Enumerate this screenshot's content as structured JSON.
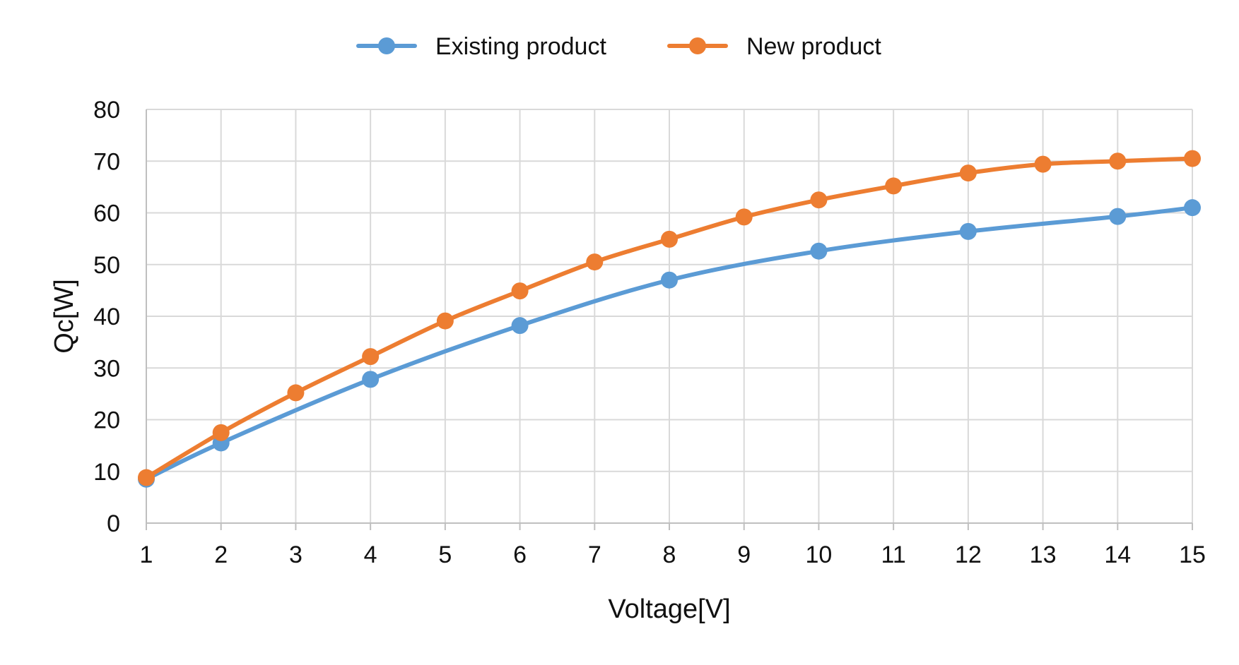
{
  "chart_data": {
    "type": "line",
    "title": "",
    "xlabel": "Voltage[V]",
    "ylabel": "Qc[W]",
    "x": [
      1,
      2,
      3,
      4,
      5,
      6,
      7,
      8,
      9,
      10,
      11,
      12,
      13,
      14,
      15
    ],
    "ylim": [
      0,
      80
    ],
    "yticks": [
      0,
      10,
      20,
      30,
      40,
      50,
      60,
      70,
      80
    ],
    "grid": true,
    "legend_position": "top-center",
    "series": [
      {
        "name": "Existing product",
        "color": "#5B9BD5",
        "smooth": true,
        "points": [
          {
            "x": 1,
            "y": 8.5
          },
          {
            "x": 2,
            "y": 15.5
          },
          {
            "x": 4,
            "y": 27.8
          },
          {
            "x": 6,
            "y": 38.2
          },
          {
            "x": 8,
            "y": 47.0
          },
          {
            "x": 10,
            "y": 52.6
          },
          {
            "x": 12,
            "y": 56.4
          },
          {
            "x": 14,
            "y": 59.3
          },
          {
            "x": 15,
            "y": 61.0
          }
        ]
      },
      {
        "name": "New product",
        "color": "#ED7D31",
        "smooth": true,
        "points": [
          {
            "x": 1,
            "y": 8.8
          },
          {
            "x": 2,
            "y": 17.5
          },
          {
            "x": 3,
            "y": 25.2
          },
          {
            "x": 4,
            "y": 32.2
          },
          {
            "x": 5,
            "y": 39.1
          },
          {
            "x": 6,
            "y": 44.9
          },
          {
            "x": 7,
            "y": 50.5
          },
          {
            "x": 8,
            "y": 54.9
          },
          {
            "x": 9,
            "y": 59.2
          },
          {
            "x": 10,
            "y": 62.5
          },
          {
            "x": 11,
            "y": 65.2
          },
          {
            "x": 12,
            "y": 67.7
          },
          {
            "x": 13,
            "y": 69.4
          },
          {
            "x": 14,
            "y": 70.0
          },
          {
            "x": 15,
            "y": 70.5
          }
        ]
      }
    ]
  }
}
